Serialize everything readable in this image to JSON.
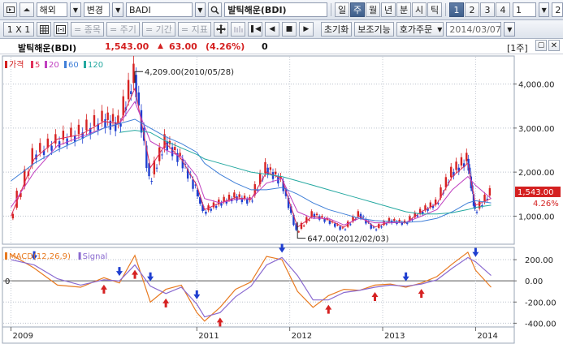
{
  "toolbar1": {
    "nav_icon": "panel-icon",
    "up_icon": "caret-up-icon",
    "market": "해외",
    "mode": "변경",
    "symbol_code": "BADI",
    "symbol_name": "발틱해운(BDI)",
    "periods": [
      "일",
      "주",
      "월",
      "년",
      "분",
      "시",
      "틱"
    ],
    "active_period": "주",
    "nums": [
      "1",
      "2",
      "3",
      "4"
    ],
    "active_num": "1",
    "num_value": "1",
    "right_value": "2"
  },
  "toolbar2": {
    "scale": "1 X 1",
    "item_btn": "= 종목",
    "period_btn": "= 주기",
    "range_btn": "= 기간",
    "indicator_btn": "= 지표",
    "reset": "초기화",
    "aux": "보조기능",
    "order": "호가주문",
    "date": "2014/03/07"
  },
  "title": {
    "name": "발틱해운(BDI)",
    "price": "1,543.00",
    "change": "63.00",
    "pct": "(4.26%)",
    "vol": "0",
    "period_label": "[1주]"
  },
  "colors": {
    "price": "#d42020",
    "ma5": "#e0305a",
    "ma20": "#c040c0",
    "ma60": "#3f7fd8",
    "ma120": "#24a8a0",
    "macd": "#e87a20",
    "signal": "#8a6ad0",
    "up": "#d62222",
    "down": "#1f3fd0"
  },
  "price_legend": [
    {
      "label": "가격",
      "key": "price"
    },
    {
      "label": "5",
      "key": "ma5"
    },
    {
      "label": "20",
      "key": "ma20"
    },
    {
      "label": "60",
      "key": "ma60"
    },
    {
      "label": "120",
      "key": "ma120"
    }
  ],
  "macd_legend": [
    {
      "label": "MACD(12,26,9)",
      "key": "macd"
    },
    {
      "label": "Signal",
      "key": "signal"
    }
  ],
  "annotations": {
    "high": "4,209.00(2010/05/28)",
    "low": "647.00(2012/02/03)"
  },
  "price_axis": [
    "4,000.00",
    "3,000.00",
    "2,000.00",
    "1,000.00"
  ],
  "last_price_tag": "1,543.00",
  "last_pct_tag": "4.26%",
  "macd_axis": [
    "200.00",
    "0.00",
    "-200.00",
    "-400.00"
  ],
  "macd_zero_label": "0",
  "x_axis": [
    "2009",
    "2011",
    "2012",
    "2013",
    "2014"
  ],
  "chart_data": [
    {
      "type": "line",
      "x": [
        "2009-01",
        "2009-04",
        "2009-07",
        "2009-10",
        "2010-01",
        "2010-03",
        "2010-05",
        "2010-07",
        "2010-09",
        "2010-11",
        "2011-01",
        "2011-02",
        "2011-04",
        "2011-06",
        "2011-08",
        "2011-10",
        "2011-12",
        "2012-02",
        "2012-04",
        "2012-06",
        "2012-08",
        "2012-10",
        "2012-12",
        "2013-02",
        "2013-04",
        "2013-06",
        "2013-08",
        "2013-10",
        "2013-12",
        "2014-01",
        "2014-03"
      ],
      "series": [
        {
          "name": "가격",
          "values": [
            950,
            2400,
            2700,
            2900,
            3200,
            3100,
            4209,
            1800,
            2700,
            2300,
            1600,
            1100,
            1300,
            1450,
            1350,
            2100,
            1800,
            647,
            1050,
            900,
            700,
            1050,
            700,
            900,
            850,
            1100,
            1300,
            2000,
            2300,
            1100,
            1543
          ]
        },
        {
          "name": "5",
          "values": [
            1000,
            2300,
            2750,
            2850,
            3150,
            3100,
            3900,
            2100,
            2650,
            2300,
            1700,
            1150,
            1300,
            1420,
            1380,
            2000,
            1850,
            750,
            1000,
            920,
            750,
            1000,
            750,
            880,
            850,
            1100,
            1280,
            1900,
            2200,
            1250,
            1400
          ]
        },
        {
          "name": "20",
          "values": [
            1200,
            2000,
            2600,
            2800,
            3000,
            3100,
            3600,
            2700,
            2500,
            2350,
            1900,
            1400,
            1300,
            1380,
            1400,
            1750,
            1850,
            1100,
            950,
            950,
            800,
            950,
            850,
            850,
            860,
            1000,
            1150,
            1600,
            1900,
            1700,
            1400
          ]
        },
        {
          "name": "60",
          "values": [
            1800,
            2200,
            2500,
            2750,
            3000,
            3100,
            3200,
            3000,
            2800,
            2650,
            2450,
            2200,
            1950,
            1750,
            1600,
            1600,
            1650,
            1500,
            1300,
            1150,
            1050,
            950,
            900,
            880,
            860,
            880,
            950,
            1100,
            1300,
            1350,
            1300
          ]
        },
        {
          "name": "120",
          "values": [
            null,
            null,
            null,
            null,
            null,
            2900,
            2950,
            2900,
            2700,
            2550,
            2400,
            2300,
            2200,
            2100,
            2000,
            1950,
            1900,
            1800,
            1700,
            1600,
            1500,
            1400,
            1300,
            1200,
            1100,
            1050,
            1050,
            1080,
            1150,
            1200,
            1250
          ]
        }
      ],
      "ylim": [
        400,
        4600
      ],
      "annotations": [
        "4,209.00(2010/05/28)",
        "647.00(2012/02/03)"
      ]
    },
    {
      "type": "line",
      "x": [
        "2009-01",
        "2009-04",
        "2009-07",
        "2009-10",
        "2010-01",
        "2010-03",
        "2010-05",
        "2010-07",
        "2010-09",
        "2010-11",
        "2011-01",
        "2011-02",
        "2011-04",
        "2011-06",
        "2011-08",
        "2011-10",
        "2011-12",
        "2012-02",
        "2012-04",
        "2012-06",
        "2012-08",
        "2012-10",
        "2012-12",
        "2013-02",
        "2013-04",
        "2013-06",
        "2013-08",
        "2013-10",
        "2013-12",
        "2014-01",
        "2014-03"
      ],
      "series": [
        {
          "name": "MACD(12,26,9)",
          "values": [
            250,
            120,
            -40,
            -60,
            30,
            -20,
            240,
            -200,
            -80,
            -40,
            -300,
            -380,
            -250,
            -80,
            -10,
            230,
            200,
            -100,
            -250,
            -140,
            -80,
            -90,
            -40,
            -30,
            -60,
            -20,
            40,
            160,
            270,
            100,
            -60
          ]
        },
        {
          "name": "Signal",
          "values": [
            200,
            150,
            20,
            -40,
            10,
            0,
            150,
            -50,
            -120,
            -60,
            -220,
            -340,
            -300,
            -150,
            -50,
            150,
            220,
            50,
            -180,
            -180,
            -110,
            -90,
            -60,
            -40,
            -50,
            -30,
            10,
            120,
            220,
            180,
            50
          ]
        }
      ],
      "ylim": [
        -420,
        300
      ]
    }
  ]
}
